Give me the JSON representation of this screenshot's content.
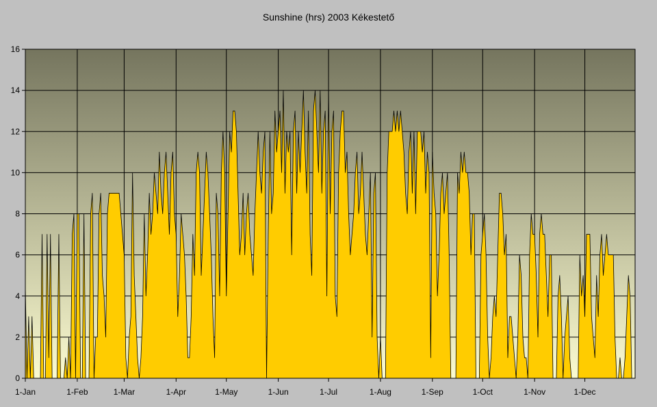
{
  "chart_data": {
    "type": "area",
    "title": "Sunshine (hrs) 2003 Kékestető",
    "xlabel": "",
    "ylabel": "",
    "ylim": [
      0,
      16
    ],
    "yticks": [
      0,
      2,
      4,
      6,
      8,
      10,
      12,
      14,
      16
    ],
    "xlim_days": [
      1,
      365
    ],
    "grid": true,
    "legend": "none",
    "colors": {
      "figure_background": "#c0c0c0",
      "plot_bg_top": "#75755e",
      "plot_bg_bottom": "#fbfbd0",
      "fill": "#ffcc00",
      "line": "#000000",
      "grid": "#000000",
      "text": "#000000"
    },
    "month_ticks": [
      {
        "label": "1-Jan",
        "day": 1
      },
      {
        "label": "1-Feb",
        "day": 32
      },
      {
        "label": "1-Mar",
        "day": 60
      },
      {
        "label": "1-Apr",
        "day": 91
      },
      {
        "label": "1-May",
        "day": 121
      },
      {
        "label": "1-Jun",
        "day": 152
      },
      {
        "label": "1-Jul",
        "day": 182
      },
      {
        "label": "1-Aug",
        "day": 213
      },
      {
        "label": "1-Sep",
        "day": 244
      },
      {
        "label": "1-Oct",
        "day": 274
      },
      {
        "label": "1-Nov",
        "day": 305
      },
      {
        "label": "1-Dec",
        "day": 335
      }
    ],
    "daily_sunshine": [
      4.5,
      0,
      3,
      0,
      3,
      0,
      0,
      0,
      0,
      0,
      7,
      0,
      0,
      7,
      1,
      7,
      0,
      0,
      0,
      0,
      7,
      0,
      0,
      0,
      1,
      0,
      2,
      0,
      7,
      8,
      0,
      8,
      8,
      0,
      0,
      8,
      0,
      0,
      0,
      8,
      9,
      0,
      2,
      2,
      8,
      9,
      5,
      4,
      2,
      8,
      9,
      9,
      9,
      9,
      9,
      9,
      9,
      8,
      7,
      6,
      1,
      0,
      2,
      3,
      10,
      5,
      3,
      1,
      0,
      1,
      3,
      8,
      4,
      6,
      9,
      7,
      8,
      10,
      9,
      8,
      11,
      9,
      8,
      10,
      11,
      9,
      7,
      10,
      11,
      8,
      7,
      3,
      5,
      8,
      7,
      6,
      4,
      1,
      1,
      3,
      7,
      5,
      10,
      11,
      10,
      5,
      7,
      9,
      11,
      10,
      8,
      6,
      3,
      1,
      9,
      8,
      4,
      10,
      12,
      10,
      4,
      8,
      12,
      11,
      13,
      13,
      12,
      9,
      6,
      7,
      9,
      6,
      8,
      9,
      7,
      6,
      5,
      8,
      10,
      12,
      10,
      9,
      11,
      12,
      0,
      7,
      12,
      8,
      9,
      13,
      11,
      12,
      13,
      10,
      14,
      9,
      12,
      11,
      12,
      6,
      12,
      13,
      9,
      12,
      10,
      12,
      14,
      11,
      9,
      13,
      7,
      5,
      13,
      14,
      12,
      10,
      14,
      9,
      12,
      13,
      4,
      14,
      8,
      12,
      13,
      4,
      3,
      10,
      12,
      13,
      13,
      10,
      11,
      8,
      6,
      7,
      8,
      10,
      11,
      8,
      9,
      11,
      9,
      7,
      6,
      8,
      10,
      2,
      9,
      10,
      2,
      0,
      2,
      0,
      0,
      0,
      10,
      12,
      12,
      12,
      13,
      12,
      13,
      12,
      13,
      12,
      11,
      9,
      8,
      11,
      12,
      9,
      12,
      8,
      12,
      12,
      12,
      11,
      12,
      9,
      11,
      10,
      1,
      11,
      9,
      8,
      4,
      6,
      9,
      10,
      8,
      9,
      10,
      6,
      0,
      0,
      0,
      0,
      10,
      9,
      11,
      10,
      11,
      10,
      10,
      9,
      6,
      8,
      8,
      0,
      0,
      0,
      6,
      7,
      8,
      6,
      2,
      0,
      1,
      3,
      4,
      3,
      6,
      9,
      9,
      8,
      6,
      7,
      1,
      3,
      3,
      2,
      1,
      0,
      2,
      6,
      5,
      2,
      1,
      1,
      0,
      6,
      8,
      7,
      7,
      5,
      2,
      7,
      8,
      7,
      7,
      5,
      3,
      6,
      6,
      0,
      0,
      0,
      4,
      5,
      3,
      0,
      2,
      3,
      4,
      1,
      0,
      0,
      0,
      0,
      0,
      6,
      4,
      5,
      3,
      7,
      7,
      7,
      3,
      2,
      1,
      5,
      3,
      6,
      7,
      5,
      6,
      7,
      6,
      6,
      6,
      6,
      2,
      0,
      0,
      1,
      0,
      0,
      1,
      3,
      5,
      4,
      0,
      0,
      0
    ]
  }
}
